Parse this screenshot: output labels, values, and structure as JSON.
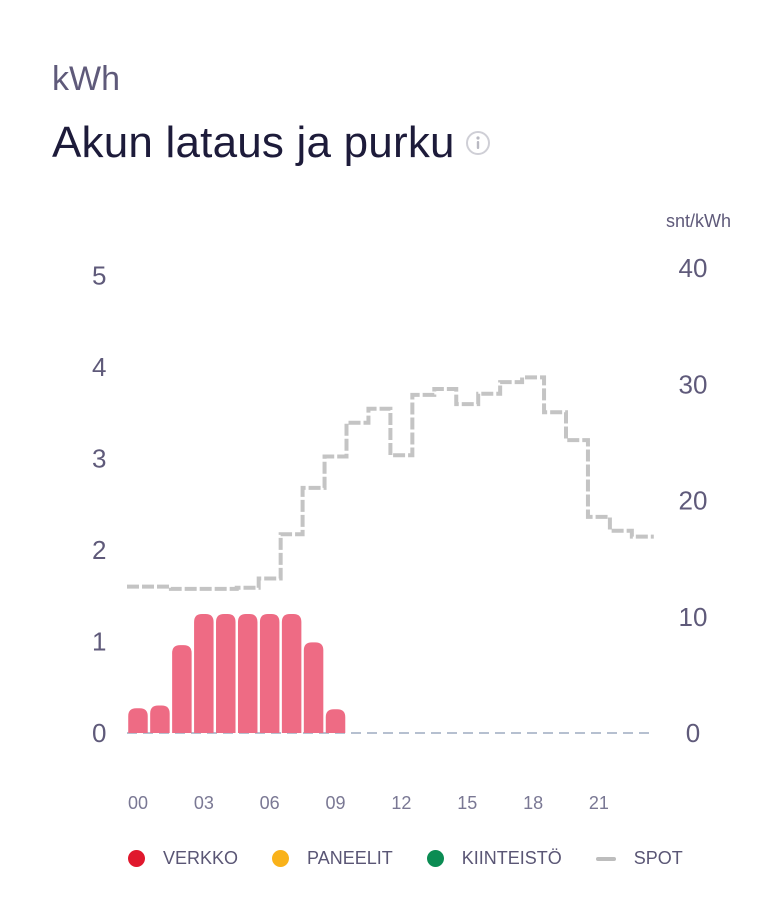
{
  "header": {
    "unit": "kWh",
    "title": "Akun lataus ja purku"
  },
  "colors": {
    "bars": "#ee6b84",
    "spot": "#c4c4c4",
    "baseline": "#8a9bb3",
    "axis_text": "#5f5a7a",
    "verkko": "#e0182d",
    "paneelit": "#f9b21a",
    "kiinteisto": "#0b8c53"
  },
  "legend": [
    {
      "label": "VERKKO",
      "marker": "dot",
      "color": "#e0182d"
    },
    {
      "label": "PANEELIT",
      "marker": "dot",
      "color": "#f9b21a"
    },
    {
      "label": "KIINTEISTÖ",
      "marker": "dot",
      "color": "#0b8c53"
    },
    {
      "label": "SPOT",
      "marker": "dash",
      "color": "#bdbdbd"
    }
  ],
  "chart_data": {
    "type": "bar",
    "left_axis": {
      "ticks": [
        "0",
        "1",
        "2",
        "3",
        "4",
        "5"
      ],
      "range": [
        0,
        5
      ]
    },
    "right_axis": {
      "label": "snt/kWh",
      "ticks": [
        "0",
        "10",
        "20",
        "30",
        "40"
      ],
      "range": [
        0,
        40
      ]
    },
    "x_ticks": [
      "00",
      "03",
      "06",
      "09",
      "12",
      "15",
      "18",
      "21"
    ],
    "hours": [
      0,
      1,
      2,
      3,
      4,
      5,
      6,
      7,
      8,
      9,
      10,
      11,
      12,
      13,
      14,
      15,
      16,
      17,
      18,
      19,
      20,
      21,
      22,
      23
    ],
    "series": [
      {
        "axis": "left",
        "type": "bar",
        "values": [
          0.27,
          0.3,
          0.96,
          1.3,
          1.3,
          1.3,
          1.3,
          1.3,
          0.99,
          0.26,
          0,
          0,
          0,
          0,
          0,
          0,
          0,
          0,
          0,
          0,
          0,
          0,
          0,
          0
        ]
      },
      {
        "name": "SPOT",
        "axis": "right",
        "type": "step",
        "values": [
          12.6,
          12.6,
          12.4,
          12.4,
          12.4,
          12.5,
          13.3,
          17.1,
          21.1,
          23.8,
          26.7,
          27.9,
          23.9,
          29.1,
          29.6,
          28.3,
          29.2,
          30.2,
          30.6,
          27.6,
          25.2,
          18.6,
          17.4,
          16.9
        ]
      }
    ]
  }
}
